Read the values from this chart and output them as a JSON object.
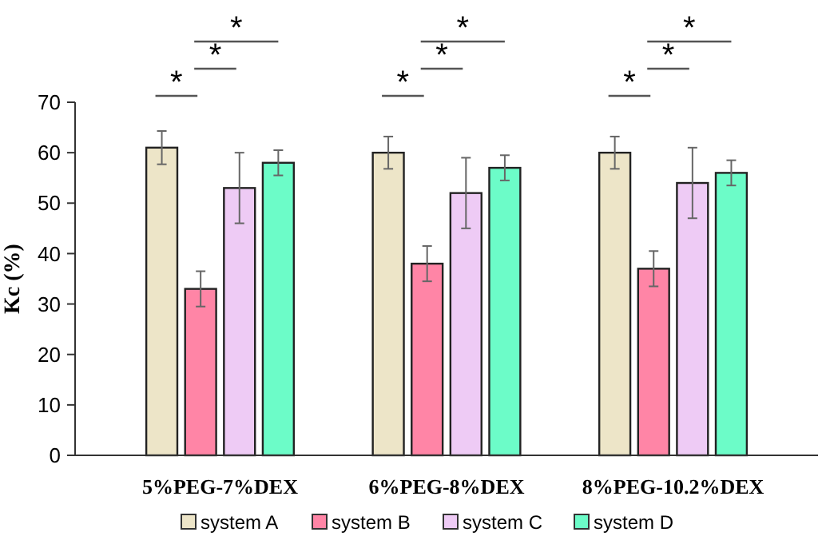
{
  "chart_data": {
    "type": "bar",
    "ylabel": "Kc (%)",
    "categories": [
      "5%PEG-7%DEX",
      "6%PEG-8%DEX",
      "8%PEG-10.2%DEX"
    ],
    "series": [
      {
        "name": "system A",
        "color": "#ede5c8",
        "values": [
          61,
          60,
          60
        ],
        "errors": [
          3.3,
          3.2,
          3.2
        ]
      },
      {
        "name": "system B",
        "color": "#ff85a6",
        "values": [
          33,
          38,
          37
        ],
        "errors": [
          3.5,
          3.5,
          3.5
        ]
      },
      {
        "name": "system C",
        "color": "#eecbf5",
        "values": [
          53,
          52,
          54
        ],
        "errors": [
          7,
          7,
          7
        ]
      },
      {
        "name": "system D",
        "color": "#6cfcc8",
        "values": [
          58,
          57,
          56
        ],
        "errors": [
          2.5,
          2.5,
          2.5
        ]
      }
    ],
    "ylim": [
      0,
      70
    ],
    "yticks": [
      0,
      10,
      20,
      30,
      40,
      50,
      60,
      70
    ],
    "grid": false,
    "legend": "bottom",
    "annotations": [
      "*",
      "*",
      "*",
      "*",
      "*",
      "*",
      "*",
      "*",
      "*"
    ]
  }
}
